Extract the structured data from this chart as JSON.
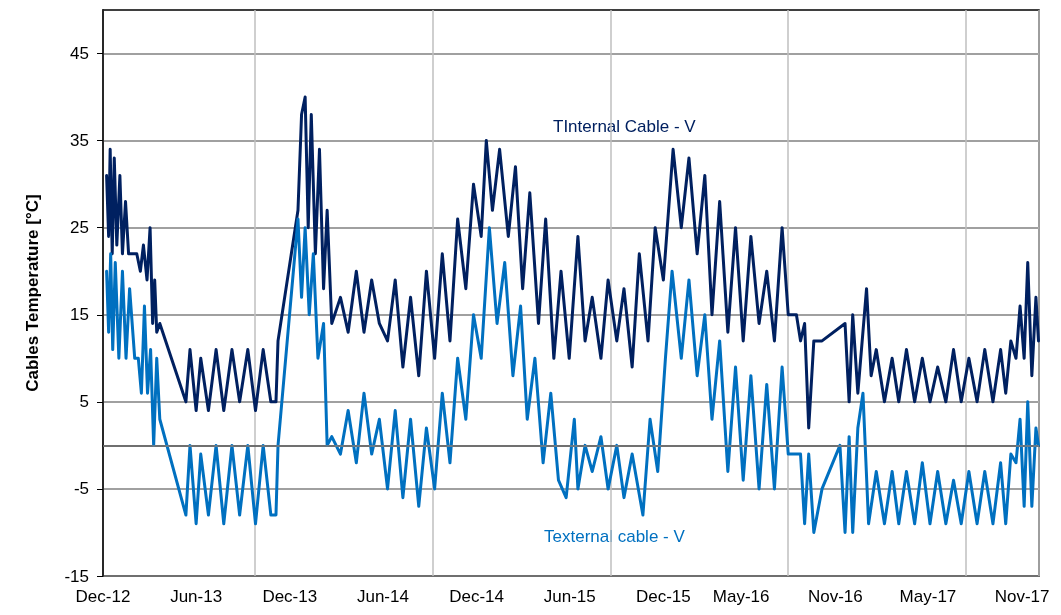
{
  "chart_data": {
    "type": "line",
    "ylabel": "Cables Temperature [°C]",
    "xlim": [
      "2012-12-01",
      "2017-12-04"
    ],
    "ylim": [
      -15,
      50
    ],
    "xticks": [
      {
        "value": "2012-12-01",
        "label": "Dec-12"
      },
      {
        "value": "2013-06-01",
        "label": "Jun-13"
      },
      {
        "value": "2013-12-01",
        "label": "Dec-13"
      },
      {
        "value": "2014-06-01",
        "label": "Jun-14"
      },
      {
        "value": "2014-12-01",
        "label": "Dec-14"
      },
      {
        "value": "2015-06-01",
        "label": "Jun-15"
      },
      {
        "value": "2015-12-01",
        "label": "Dec-15"
      },
      {
        "value": "2016-05-01",
        "label": "May-16"
      },
      {
        "value": "2016-11-01",
        "label": "Nov-16"
      },
      {
        "value": "2017-05-01",
        "label": "May-17"
      },
      {
        "value": "2017-11-01",
        "label": "Nov-17"
      }
    ],
    "yticks": [
      -15,
      -5,
      5,
      15,
      25,
      35,
      45
    ],
    "grid": true,
    "legend": false,
    "marker": "none",
    "line_style": "solid",
    "ref_lines": [
      {
        "axis": "y",
        "value": 0,
        "label": null,
        "color": "#808080"
      }
    ],
    "series": [
      {
        "name": "TInternal Cable - V",
        "color": "#002060",
        "x": [
          "2012-12-08",
          "2012-12-12",
          "2012-12-15",
          "2012-12-19",
          "2012-12-23",
          "2012-12-28",
          "2013-01-03",
          "2013-01-08",
          "2013-01-14",
          "2013-01-20",
          "2013-01-28",
          "2013-02-05",
          "2013-02-12",
          "2013-02-18",
          "2013-02-25",
          "2013-03-03",
          "2013-03-08",
          "2013-03-12",
          "2013-03-16",
          "2013-03-22",
          "2013-05-12",
          "2013-05-20",
          "2013-06-01",
          "2013-06-10",
          "2013-06-25",
          "2013-07-10",
          "2013-07-25",
          "2013-08-10",
          "2013-08-25",
          "2013-09-10",
          "2013-09-25",
          "2013-10-10",
          "2013-10-25",
          "2013-11-04",
          "2013-11-08",
          "2013-12-17",
          "2013-12-24",
          "2013-12-31",
          "2014-01-06",
          "2014-01-12",
          "2014-01-20",
          "2014-01-28",
          "2014-02-05",
          "2014-02-12",
          "2014-02-21",
          "2014-03-10",
          "2014-03-25",
          "2014-04-10",
          "2014-04-25",
          "2014-05-10",
          "2014-05-25",
          "2014-06-10",
          "2014-06-25",
          "2014-07-10",
          "2014-07-25",
          "2014-08-10",
          "2014-08-25",
          "2014-09-10",
          "2014-09-25",
          "2014-10-10",
          "2014-10-25",
          "2014-11-10",
          "2014-11-25",
          "2014-12-10",
          "2014-12-20",
          "2015-01-01",
          "2015-01-15",
          "2015-02-01",
          "2015-02-15",
          "2015-03-01",
          "2015-03-15",
          "2015-04-01",
          "2015-04-15",
          "2015-05-01",
          "2015-05-15",
          "2015-05-31",
          "2015-06-17",
          "2015-07-01",
          "2015-07-15",
          "2015-08-01",
          "2015-08-15",
          "2015-09-01",
          "2015-09-15",
          "2015-10-01",
          "2015-10-15",
          "2015-11-01",
          "2015-11-15",
          "2015-12-01",
          "2015-12-20",
          "2016-01-05",
          "2016-01-20",
          "2016-02-05",
          "2016-02-20",
          "2016-03-05",
          "2016-03-20",
          "2016-04-05",
          "2016-04-20",
          "2016-05-05",
          "2016-05-20",
          "2016-06-05",
          "2016-06-20",
          "2016-07-05",
          "2016-07-20",
          "2016-08-01",
          "2016-08-17",
          "2016-08-25",
          "2016-09-02",
          "2016-09-10",
          "2016-09-20",
          "2016-10-06",
          "2016-11-20",
          "2016-11-28",
          "2016-12-05",
          "2016-12-15",
          "2017-01-01",
          "2017-01-10",
          "2017-01-20",
          "2017-02-05",
          "2017-02-20",
          "2017-03-05",
          "2017-03-20",
          "2017-04-05",
          "2017-04-20",
          "2017-05-05",
          "2017-05-20",
          "2017-06-05",
          "2017-06-20",
          "2017-07-05",
          "2017-07-20",
          "2017-08-05",
          "2017-08-20",
          "2017-09-05",
          "2017-09-20",
          "2017-09-30",
          "2017-10-10",
          "2017-10-20",
          "2017-10-28",
          "2017-11-05",
          "2017-11-12",
          "2017-11-20",
          "2017-11-28",
          "2017-12-03"
        ],
        "values": [
          31,
          24,
          34,
          22,
          33,
          23,
          31,
          22,
          28,
          22,
          22,
          22,
          20,
          23,
          19,
          25,
          14,
          19,
          13,
          14,
          5,
          11,
          4,
          10,
          4,
          11,
          4,
          11,
          5,
          11,
          4,
          11,
          5,
          5,
          12,
          27,
          38,
          40,
          25,
          38,
          22,
          34,
          18,
          27,
          14,
          17,
          13,
          20,
          13,
          19,
          14,
          12,
          19,
          9,
          17,
          8,
          20,
          10,
          22,
          12,
          26,
          18,
          30,
          24,
          35,
          27,
          34,
          24,
          32,
          18,
          29,
          14,
          26,
          10,
          20,
          10,
          24,
          12,
          17,
          10,
          19,
          12,
          18,
          9,
          22,
          12,
          25,
          19,
          34,
          25,
          33,
          22,
          31,
          15,
          28,
          13,
          25,
          12,
          24,
          14,
          20,
          12,
          25,
          15,
          15,
          12,
          14,
          2,
          12,
          12,
          14,
          5,
          15,
          6,
          18,
          8,
          11,
          5,
          10,
          5,
          11,
          5,
          10,
          5,
          9,
          5,
          11,
          5,
          10,
          5,
          11,
          5,
          11,
          6,
          12,
          10,
          16,
          10,
          21,
          8,
          17,
          12
        ]
      },
      {
        "name": "Texternal cable - V",
        "color": "#0070c0",
        "x": [
          "2012-12-08",
          "2012-12-12",
          "2012-12-16",
          "2012-12-20",
          "2012-12-25",
          "2013-01-01",
          "2013-01-08",
          "2013-01-15",
          "2013-01-22",
          "2013-02-01",
          "2013-02-08",
          "2013-02-14",
          "2013-02-20",
          "2013-02-26",
          "2013-03-04",
          "2013-03-10",
          "2013-03-16",
          "2013-03-22",
          "2013-05-12",
          "2013-05-20",
          "2013-06-01",
          "2013-06-10",
          "2013-06-25",
          "2013-07-10",
          "2013-07-25",
          "2013-08-10",
          "2013-08-25",
          "2013-09-10",
          "2013-09-25",
          "2013-10-10",
          "2013-10-25",
          "2013-11-04",
          "2013-11-08",
          "2013-12-17",
          "2013-12-24",
          "2013-12-31",
          "2014-01-08",
          "2014-01-16",
          "2014-01-25",
          "2014-02-05",
          "2014-02-12",
          "2014-02-21",
          "2014-03-10",
          "2014-03-25",
          "2014-04-10",
          "2014-04-25",
          "2014-05-10",
          "2014-05-25",
          "2014-06-10",
          "2014-06-25",
          "2014-07-10",
          "2014-07-25",
          "2014-08-10",
          "2014-08-25",
          "2014-09-10",
          "2014-09-25",
          "2014-10-10",
          "2014-10-25",
          "2014-11-10",
          "2014-11-25",
          "2014-12-10",
          "2014-12-26",
          "2015-01-10",
          "2015-01-25",
          "2015-02-10",
          "2015-02-25",
          "2015-03-10",
          "2015-03-25",
          "2015-04-10",
          "2015-04-25",
          "2015-05-10",
          "2015-05-25",
          "2015-06-10",
          "2015-06-17",
          "2015-07-01",
          "2015-07-15",
          "2015-08-01",
          "2015-08-15",
          "2015-09-01",
          "2015-09-15",
          "2015-10-01",
          "2015-10-22",
          "2015-11-05",
          "2015-11-20",
          "2015-12-05",
          "2015-12-18",
          "2016-01-05",
          "2016-01-20",
          "2016-02-05",
          "2016-02-20",
          "2016-03-05",
          "2016-03-20",
          "2016-04-05",
          "2016-04-20",
          "2016-05-05",
          "2016-05-20",
          "2016-06-05",
          "2016-06-20",
          "2016-07-05",
          "2016-07-20",
          "2016-08-01",
          "2016-08-17",
          "2016-08-25",
          "2016-09-02",
          "2016-09-10",
          "2016-09-20",
          "2016-10-06",
          "2016-11-10",
          "2016-11-20",
          "2016-11-28",
          "2016-12-05",
          "2016-12-15",
          "2016-12-25",
          "2017-01-05",
          "2017-01-20",
          "2017-02-05",
          "2017-02-20",
          "2017-03-05",
          "2017-03-20",
          "2017-04-05",
          "2017-04-20",
          "2017-05-05",
          "2017-05-20",
          "2017-06-05",
          "2017-06-20",
          "2017-07-05",
          "2017-07-20",
          "2017-08-05",
          "2017-08-20",
          "2017-09-05",
          "2017-09-20",
          "2017-09-30",
          "2017-10-10",
          "2017-10-20",
          "2017-10-28",
          "2017-11-05",
          "2017-11-12",
          "2017-11-20",
          "2017-11-28",
          "2017-12-03"
        ],
        "values": [
          20,
          13,
          22,
          11,
          21,
          10,
          20,
          10,
          18,
          10,
          10,
          6,
          16,
          6,
          11,
          0,
          10,
          3,
          -8,
          0,
          -9,
          -1,
          -8,
          0,
          -9,
          0,
          -8,
          0,
          -9,
          0,
          -8,
          -8,
          0,
          26,
          17,
          25,
          15,
          22,
          10,
          14,
          0,
          1,
          -1,
          4,
          -2,
          6,
          -1,
          3,
          -5,
          4,
          -6,
          3,
          -7,
          2,
          -5,
          6,
          -2,
          10,
          3,
          15,
          10,
          25,
          14,
          21,
          8,
          16,
          3,
          10,
          -2,
          6,
          -4,
          -6,
          3,
          -5,
          0,
          -3,
          1,
          -5,
          0,
          -6,
          -1,
          -8,
          3,
          -3,
          10,
          20,
          10,
          19,
          8,
          15,
          3,
          12,
          -3,
          9,
          -4,
          8,
          -5,
          7,
          -5,
          9,
          -1,
          -1,
          -1,
          -9,
          -1,
          -10,
          -5,
          0,
          -10,
          1,
          -10,
          2,
          6,
          -9,
          -3,
          -9,
          -3,
          -9,
          -3,
          -9,
          -2,
          -9,
          -3,
          -9,
          -4,
          -9,
          -3,
          -9,
          -3,
          -9,
          -2,
          -9,
          -1,
          -2,
          3,
          -7,
          5,
          -7,
          2,
          0
        ]
      }
    ]
  }
}
